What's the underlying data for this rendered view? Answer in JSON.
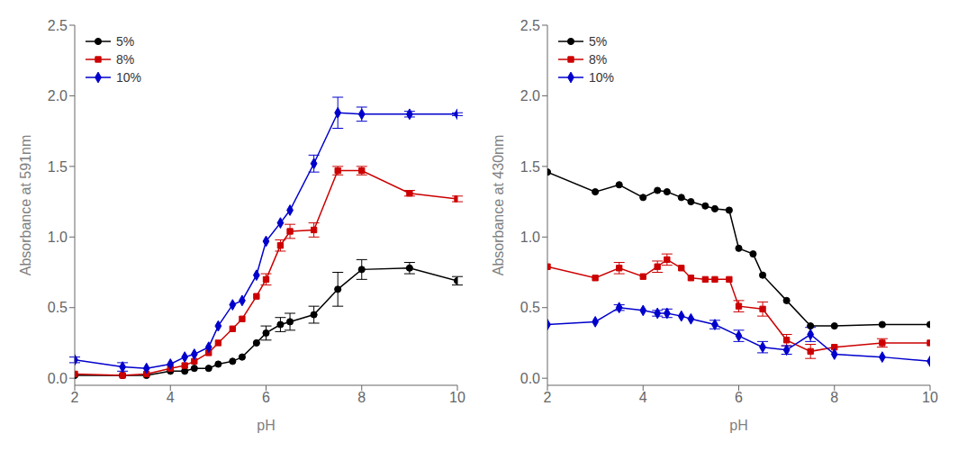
{
  "chart_data": [
    {
      "type": "line",
      "xlabel": "pH",
      "ylabel": "Absorbance at 591nm",
      "xlim": [
        2,
        10
      ],
      "ylim": [
        -0.05,
        2.5
      ],
      "xticks": [
        2,
        4,
        6,
        8,
        10
      ],
      "yticks": [
        {
          "value": 0.0,
          "label": "0.0"
        },
        0.5,
        {
          "value": 1.0,
          "label": "1.0"
        },
        1.5,
        {
          "value": 2.0,
          "label": "2.0"
        },
        2.5
      ],
      "grid": false,
      "legend": "upper left",
      "series": [
        {
          "name": "5%",
          "color": "#000000",
          "marker": "circle",
          "x": [
            2,
            3,
            3.5,
            4,
            4.3,
            4.5,
            4.8,
            5,
            5.3,
            5.5,
            5.8,
            6,
            6.3,
            6.5,
            7,
            7.5,
            8,
            9,
            10
          ],
          "values": [
            0.02,
            0.02,
            0.02,
            0.05,
            0.05,
            0.07,
            0.07,
            0.1,
            0.12,
            0.15,
            0.25,
            0.32,
            0.38,
            0.4,
            0.45,
            0.63,
            0.77,
            0.78,
            0.69
          ],
          "yerr": [
            0,
            0,
            0,
            0,
            0,
            0,
            0,
            0,
            0,
            0,
            0,
            0.05,
            0.05,
            0.06,
            0.06,
            0.12,
            0.07,
            0.04,
            0.03
          ]
        },
        {
          "name": "8%",
          "color": "#cc0000",
          "marker": "square",
          "x": [
            2,
            3,
            3.5,
            4,
            4.3,
            4.5,
            4.8,
            5,
            5.3,
            5.5,
            5.8,
            6,
            6.3,
            6.5,
            7,
            7.5,
            8,
            9,
            10
          ],
          "values": [
            0.03,
            0.02,
            0.03,
            0.07,
            0.09,
            0.12,
            0.18,
            0.25,
            0.35,
            0.42,
            0.58,
            0.7,
            0.94,
            1.04,
            1.05,
            1.47,
            1.47,
            1.31,
            1.27
          ],
          "yerr": [
            0,
            0,
            0,
            0,
            0,
            0,
            0,
            0,
            0,
            0,
            0,
            0.04,
            0.04,
            0.05,
            0.05,
            0.03,
            0.03,
            0.02,
            0.02
          ]
        },
        {
          "name": "10%",
          "color": "#0000cc",
          "marker": "diamond",
          "x": [
            2,
            3,
            3.5,
            4,
            4.3,
            4.5,
            4.8,
            5,
            5.3,
            5.5,
            5.8,
            6,
            6.3,
            6.5,
            7,
            7.5,
            8,
            9,
            10
          ],
          "values": [
            0.13,
            0.08,
            0.07,
            0.1,
            0.15,
            0.17,
            0.22,
            0.37,
            0.52,
            0.55,
            0.73,
            0.97,
            1.1,
            1.19,
            1.52,
            1.88,
            1.87,
            1.87,
            1.87
          ],
          "yerr": [
            0.02,
            0.03,
            0,
            0,
            0,
            0,
            0,
            0,
            0,
            0,
            0,
            0,
            0,
            0,
            0.06,
            0.11,
            0.05,
            0.02,
            0.01
          ]
        }
      ]
    },
    {
      "type": "line",
      "xlabel": "pH",
      "ylabel": "Absorbance at 430nm",
      "xlim": [
        2,
        10
      ],
      "ylim": [
        -0.05,
        2.5
      ],
      "xticks": [
        2,
        4,
        6,
        8,
        10
      ],
      "yticks": [
        {
          "value": 0.0,
          "label": "0.0"
        },
        0.5,
        {
          "value": 1.0,
          "label": "1.0"
        },
        1.5,
        {
          "value": 2.0,
          "label": "2.0"
        },
        2.5
      ],
      "grid": false,
      "legend": "upper left",
      "series": [
        {
          "name": "5%",
          "color": "#000000",
          "marker": "circle",
          "x": [
            2,
            3,
            3.5,
            4,
            4.3,
            4.5,
            4.8,
            5,
            5.3,
            5.5,
            5.8,
            6,
            6.3,
            6.5,
            7,
            7.5,
            8,
            9,
            10
          ],
          "values": [
            1.46,
            1.32,
            1.37,
            1.28,
            1.33,
            1.32,
            1.28,
            1.25,
            1.22,
            1.2,
            1.19,
            0.92,
            0.88,
            0.73,
            0.55,
            0.37,
            0.37,
            0.38,
            0.38
          ],
          "yerr": [
            0,
            0,
            0,
            0,
            0,
            0,
            0,
            0,
            0,
            0,
            0,
            0,
            0,
            0,
            0,
            0,
            0,
            0,
            0
          ]
        },
        {
          "name": "8%",
          "color": "#cc0000",
          "marker": "square",
          "x": [
            2,
            3,
            3.5,
            4,
            4.3,
            4.5,
            4.8,
            5,
            5.3,
            5.5,
            5.8,
            6,
            6.5,
            7,
            7.5,
            8,
            9,
            10
          ],
          "values": [
            0.79,
            0.71,
            0.78,
            0.72,
            0.79,
            0.84,
            0.78,
            0.71,
            0.7,
            0.7,
            0.7,
            0.51,
            0.49,
            0.27,
            0.19,
            0.22,
            0.25,
            0.25
          ],
          "yerr": [
            0,
            0,
            0.04,
            0,
            0.04,
            0.04,
            0,
            0,
            0,
            0,
            0,
            0.04,
            0.05,
            0.04,
            0.05,
            0,
            0.03,
            0
          ]
        },
        {
          "name": "10%",
          "color": "#0000cc",
          "marker": "diamond",
          "x": [
            2,
            3,
            3.5,
            4,
            4.3,
            4.5,
            4.8,
            5,
            5.5,
            6,
            6.5,
            7,
            7.5,
            8,
            9,
            10
          ],
          "values": [
            0.38,
            0.4,
            0.5,
            0.48,
            0.46,
            0.46,
            0.44,
            0.42,
            0.38,
            0.3,
            0.22,
            0.2,
            0.31,
            0.17,
            0.15,
            0.12
          ],
          "yerr": [
            0,
            0,
            0.02,
            0,
            0.02,
            0.03,
            0,
            0,
            0.03,
            0.04,
            0.04,
            0.03,
            0.05,
            0,
            0,
            0
          ]
        }
      ]
    }
  ]
}
